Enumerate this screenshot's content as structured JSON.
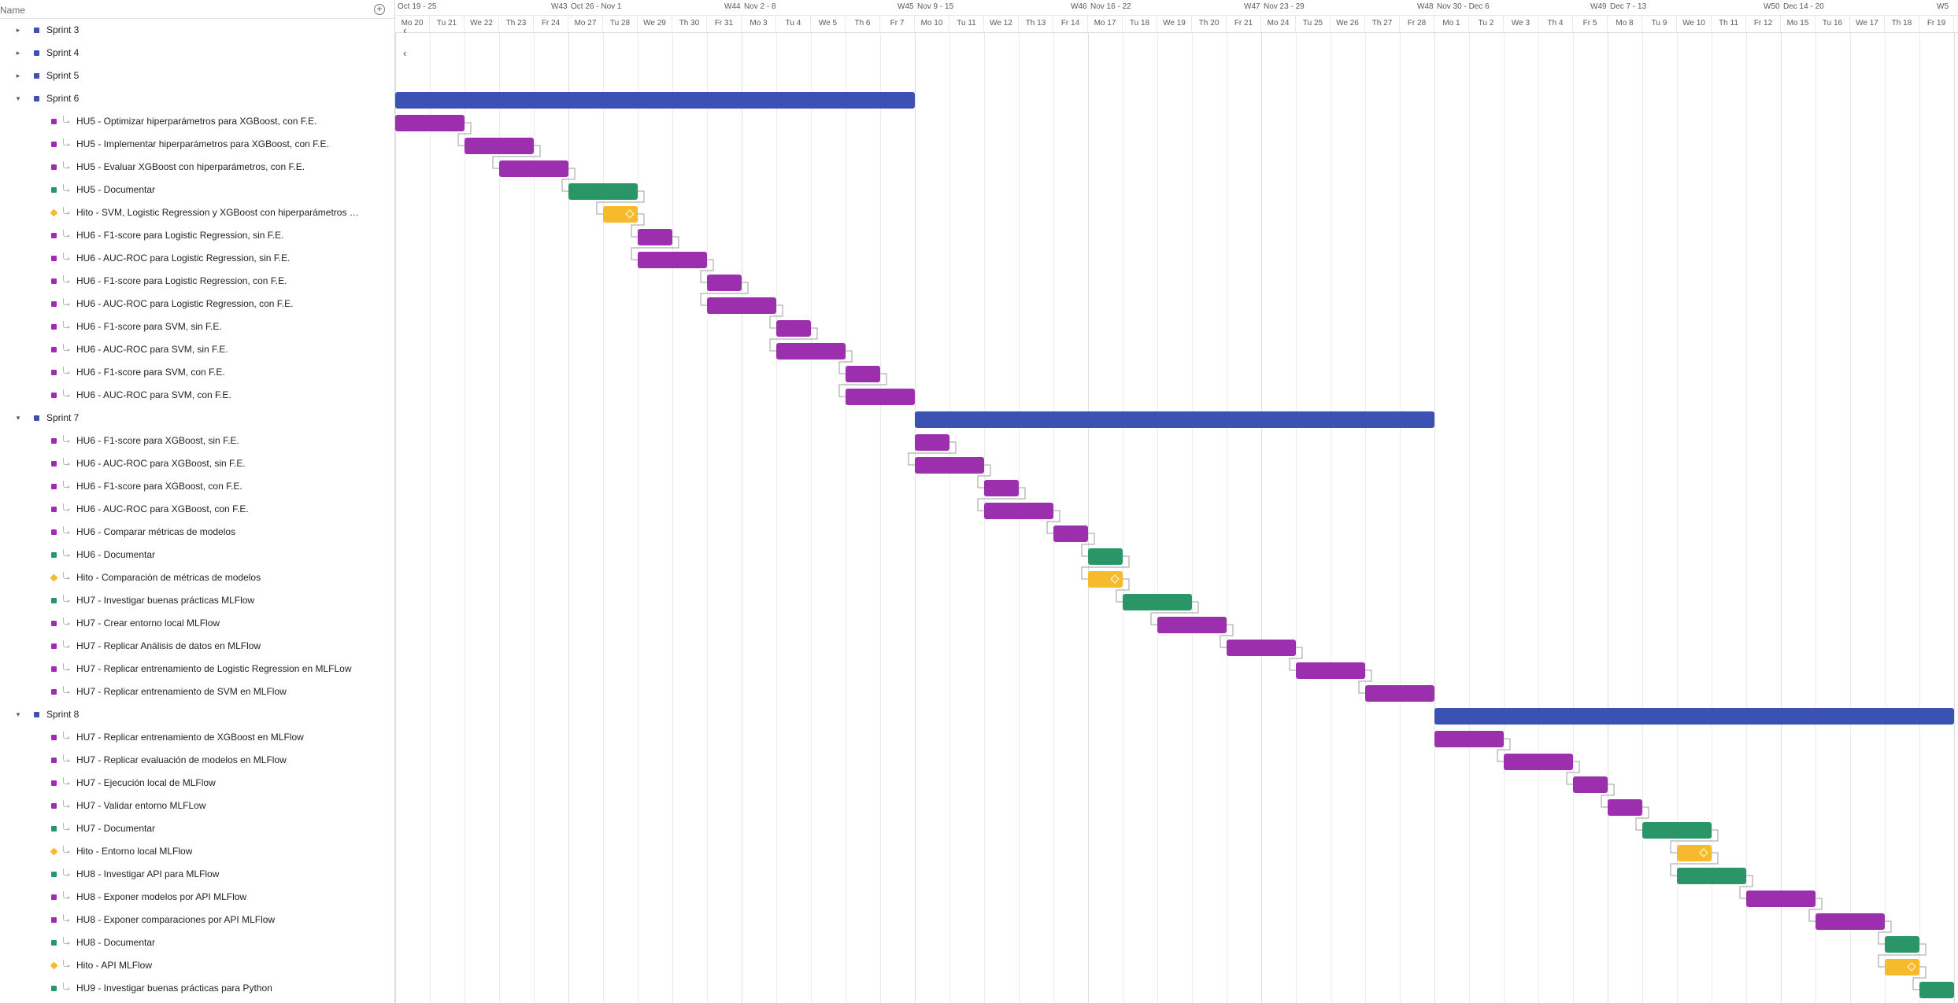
{
  "header": {
    "name_label": "Name",
    "add_icon": "plus-circle-icon"
  },
  "colors": {
    "sprint": "#3b52b4",
    "task": "#9b2fae",
    "doc": "#2a9668",
    "milestone": "#f6bb2d"
  },
  "timeline": {
    "week_labels": [
      {
        "label": "Oct 19 - 25",
        "week": "W43"
      },
      {
        "label": "Oct 26 - Nov 1",
        "week": "W44"
      },
      {
        "label": "Nov 2 - 8",
        "week": "W45"
      },
      {
        "label": "Nov 9 - 15",
        "week": "W46"
      },
      {
        "label": "Nov 16 - 22",
        "week": "W47"
      },
      {
        "label": "Nov 23 - 29",
        "week": "W48"
      },
      {
        "label": "Nov 30 - Dec 6",
        "week": "W49"
      },
      {
        "label": "Dec 7 - 13",
        "week": "W50"
      },
      {
        "label": "Dec 14 - 20",
        "week": "W5"
      }
    ],
    "days": [
      "Mo 20",
      "Tu 21",
      "We 22",
      "Th 23",
      "Fr 24",
      "Mo 27",
      "Tu 28",
      "We 29",
      "Th 30",
      "Fr 31",
      "Mo 3",
      "Tu 4",
      "We 5",
      "Th 6",
      "Fr 7",
      "Mo 10",
      "Tu 11",
      "We 12",
      "Th 13",
      "Fr 14",
      "Mo 17",
      "Tu 18",
      "We 19",
      "Th 20",
      "Fr 21",
      "Mo 24",
      "Tu 25",
      "We 26",
      "Th 27",
      "Fr 28",
      "Mo 1",
      "Tu 2",
      "We 3",
      "Th 4",
      "Fr 5",
      "Mo 8",
      "Tu 9",
      "We 10",
      "Th 11",
      "Fr 12",
      "Mo 15",
      "Tu 16",
      "We 17",
      "Th 18",
      "Fr 19"
    ]
  },
  "rows": [
    {
      "type": "sprint",
      "label": "Sprint 3",
      "expanded": false
    },
    {
      "type": "sprint",
      "label": "Sprint 4",
      "expanded": false
    },
    {
      "type": "sprint",
      "label": "Sprint 5",
      "expanded": false
    },
    {
      "type": "sprint",
      "label": "Sprint 6",
      "expanded": true,
      "start": 0,
      "end": 15
    },
    {
      "type": "task",
      "kind": "task",
      "label": "HU5 - Optimizar hiperparámetros para XGBoost, con F.E.",
      "start": 0,
      "end": 2
    },
    {
      "type": "task",
      "kind": "task",
      "label": "HU5 - Implementar hiperparámetros para XGBoost, con F.E.",
      "start": 2,
      "end": 4
    },
    {
      "type": "task",
      "kind": "task",
      "label": "HU5 - Evaluar XGBoost con hiperparámetros, con F.E.",
      "start": 3,
      "end": 5
    },
    {
      "type": "task",
      "kind": "doc",
      "label": "HU5 - Documentar",
      "start": 5,
      "end": 7
    },
    {
      "type": "task",
      "kind": "milestone",
      "label": "Hito - SVM, Logistic Regression y XGBoost con hiperparámetros opti...",
      "start": 6,
      "end": 7
    },
    {
      "type": "task",
      "kind": "task",
      "label": "HU6 - F1-score para Logistic Regression, sin F.E.",
      "start": 7,
      "end": 8
    },
    {
      "type": "task",
      "kind": "task",
      "label": "HU6 - AUC-ROC para Logistic Regression, sin F.E.",
      "start": 7,
      "end": 9
    },
    {
      "type": "task",
      "kind": "task",
      "label": "HU6 - F1-score para Logistic Regression, con F.E.",
      "start": 9,
      "end": 10
    },
    {
      "type": "task",
      "kind": "task",
      "label": "HU6 - AUC-ROC para Logistic Regression, con F.E.",
      "start": 9,
      "end": 11
    },
    {
      "type": "task",
      "kind": "task",
      "label": "HU6 - F1-score para SVM, sin F.E.",
      "start": 11,
      "end": 12
    },
    {
      "type": "task",
      "kind": "task",
      "label": "HU6 - AUC-ROC para SVM, sin F.E.",
      "start": 11,
      "end": 13
    },
    {
      "type": "task",
      "kind": "task",
      "label": "HU6 - F1-score para SVM, con F.E.",
      "start": 13,
      "end": 14
    },
    {
      "type": "task",
      "kind": "task",
      "label": "HU6 - AUC-ROC para SVM, con F.E.",
      "start": 13,
      "end": 15
    },
    {
      "type": "sprint",
      "label": "Sprint 7",
      "expanded": true,
      "start": 15,
      "end": 30
    },
    {
      "type": "task",
      "kind": "task",
      "label": "HU6 - F1-score para XGBoost, sin F.E.",
      "start": 15,
      "end": 16
    },
    {
      "type": "task",
      "kind": "task",
      "label": "HU6 - AUC-ROC para XGBoost, sin F.E.",
      "start": 15,
      "end": 17
    },
    {
      "type": "task",
      "kind": "task",
      "label": "HU6 - F1-score para XGBoost, con F.E.",
      "start": 17,
      "end": 18
    },
    {
      "type": "task",
      "kind": "task",
      "label": "HU6 - AUC-ROC para XGBoost, con F.E.",
      "start": 17,
      "end": 19
    },
    {
      "type": "task",
      "kind": "task",
      "label": "HU6 - Comparar métricas de modelos",
      "start": 19,
      "end": 20
    },
    {
      "type": "task",
      "kind": "doc",
      "label": "HU6 - Documentar",
      "start": 20,
      "end": 21
    },
    {
      "type": "task",
      "kind": "milestone",
      "label": "Hito - Comparación de métricas de modelos",
      "start": 20,
      "end": 21
    },
    {
      "type": "task",
      "kind": "doc",
      "label": "HU7 - Investigar buenas prácticas MLFlow",
      "start": 21,
      "end": 23
    },
    {
      "type": "task",
      "kind": "task",
      "label": "HU7 - Crear entorno local MLFlow",
      "start": 22,
      "end": 24
    },
    {
      "type": "task",
      "kind": "task",
      "label": "HU7 - Replicar Análisis de datos en MLFlow",
      "start": 24,
      "end": 26
    },
    {
      "type": "task",
      "kind": "task",
      "label": "HU7 - Replicar entrenamiento de Logistic Regression en MLFLow",
      "start": 26,
      "end": 28
    },
    {
      "type": "task",
      "kind": "task",
      "label": "HU7 - Replicar entrenamiento de SVM en MLFlow",
      "start": 28,
      "end": 30
    },
    {
      "type": "sprint",
      "label": "Sprint 8",
      "expanded": true,
      "start": 30,
      "end": 45
    },
    {
      "type": "task",
      "kind": "task",
      "label": "HU7 - Replicar entrenamiento de XGBoost en MLFlow",
      "start": 30,
      "end": 32
    },
    {
      "type": "task",
      "kind": "task",
      "label": "HU7 - Replicar evaluación de modelos en MLFlow",
      "start": 32,
      "end": 34
    },
    {
      "type": "task",
      "kind": "task",
      "label": "HU7 - Ejecución local de MLFlow",
      "start": 34,
      "end": 35
    },
    {
      "type": "task",
      "kind": "task",
      "label": "HU7 - Validar entorno MLFLow",
      "start": 35,
      "end": 36
    },
    {
      "type": "task",
      "kind": "doc",
      "label": "HU7 - Documentar",
      "start": 36,
      "end": 38
    },
    {
      "type": "task",
      "kind": "milestone",
      "label": "Hito - Entorno local MLFlow",
      "start": 37,
      "end": 38
    },
    {
      "type": "task",
      "kind": "doc",
      "label": "HU8 - Investigar API para MLFlow",
      "start": 37,
      "end": 39
    },
    {
      "type": "task",
      "kind": "task",
      "label": "HU8 - Exponer modelos por API MLFlow",
      "start": 39,
      "end": 41
    },
    {
      "type": "task",
      "kind": "task",
      "label": "HU8 - Exponer comparaciones por API MLFlow",
      "start": 41,
      "end": 43
    },
    {
      "type": "task",
      "kind": "doc",
      "label": "HU8 - Documentar",
      "start": 43,
      "end": 44
    },
    {
      "type": "task",
      "kind": "milestone",
      "label": "Hito - API MLFlow",
      "start": 43,
      "end": 44
    },
    {
      "type": "task",
      "kind": "doc",
      "label": "HU9 - Investigar buenas prácticas para Python",
      "start": 44,
      "end": 45
    }
  ]
}
